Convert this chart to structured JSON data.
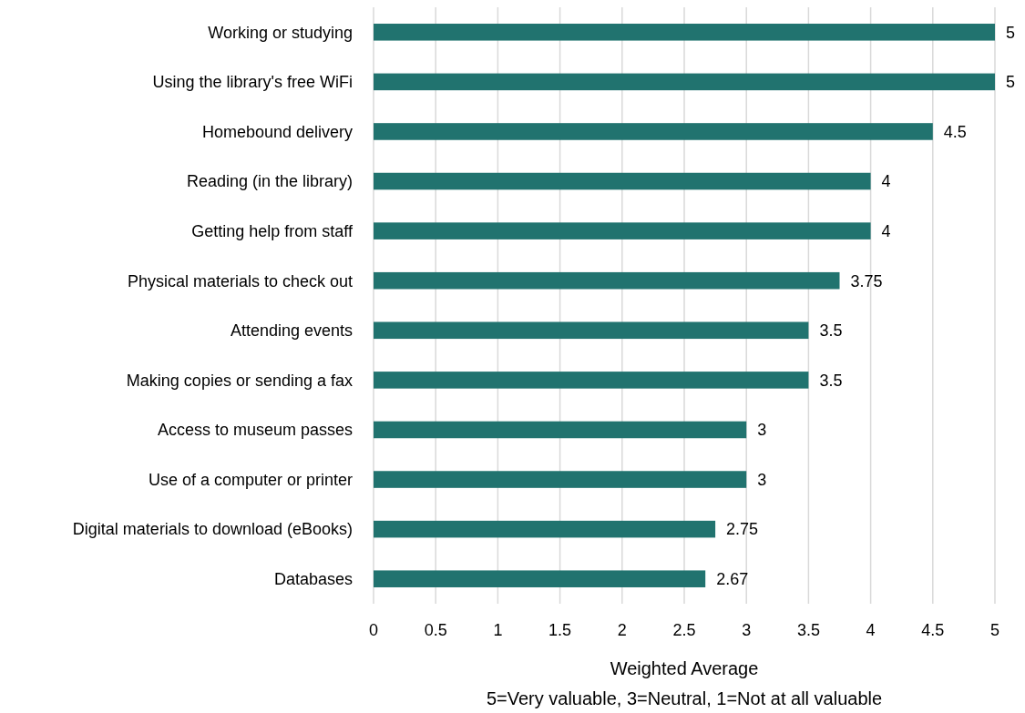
{
  "chart_data": {
    "type": "bar",
    "orientation": "horizontal",
    "categories": [
      "Working or studying",
      "Using the library's free WiFi",
      "Homebound delivery",
      "Reading (in the library)",
      "Getting help from staff",
      "Physical materials to check out",
      "Attending events",
      "Making copies or sending a fax",
      "Access to museum passes",
      "Use of a computer or printer",
      "Digital materials to download (eBooks)",
      "Databases"
    ],
    "values": [
      5,
      5,
      4.5,
      4,
      4,
      3.75,
      3.5,
      3.5,
      3,
      3,
      2.75,
      2.67
    ],
    "color": "#21736f",
    "xlim": [
      0,
      5
    ],
    "xticks": [
      0,
      0.5,
      1,
      1.5,
      2,
      2.5,
      3,
      3.5,
      4,
      4.5,
      5
    ],
    "xlabel": "Weighted Average",
    "annotations": [
      "5=Very valuable, 3=Neutral, 1=Not at all valuable"
    ],
    "grid": "x",
    "data_labels": true
  }
}
